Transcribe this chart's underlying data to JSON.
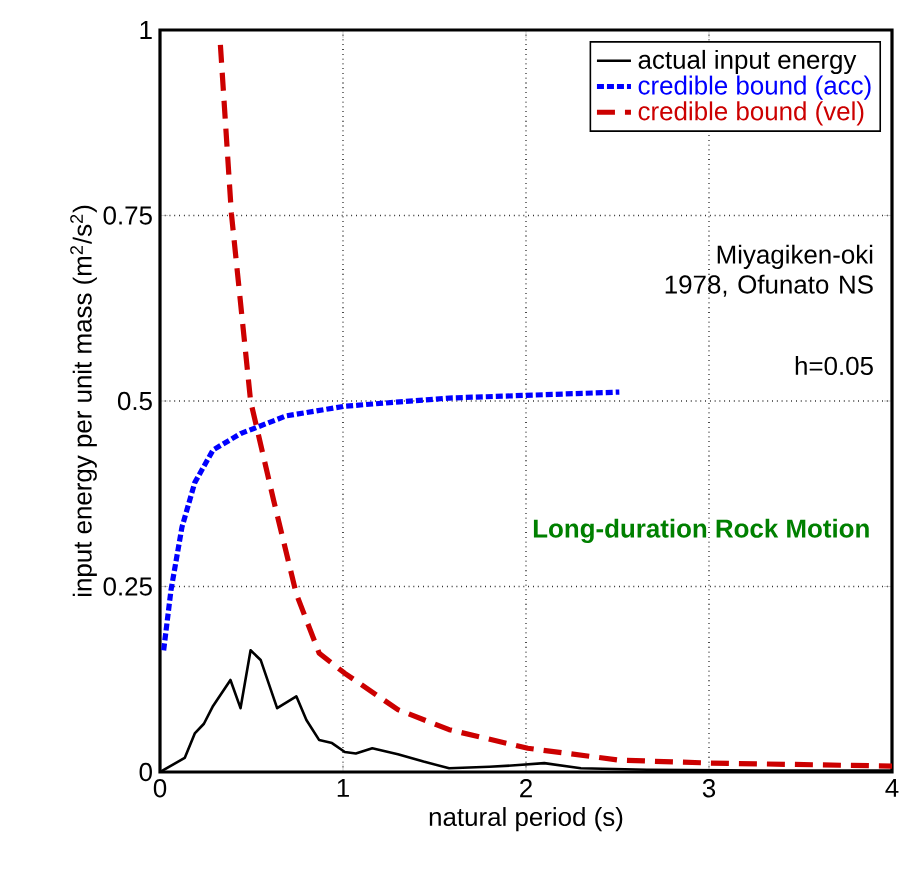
{
  "chart_data": {
    "type": "line",
    "xlabel": "natural period (s)",
    "ylabel": "input energy per unit mass (m$^{2}$/s$^{2}$)",
    "xlim": [
      0,
      4
    ],
    "ylim": [
      0,
      1
    ],
    "xticks": [
      0,
      1,
      2,
      3,
      4
    ],
    "yticks": [
      0,
      0.25,
      0.5,
      0.75,
      1
    ],
    "grid": true,
    "legend": "top right",
    "annotations": [
      "Miyagiken-oki 1978, Ofunato NS",
      "h=0.05",
      "Long-duration Rock Motion"
    ],
    "series": [
      {
        "name": "actual input energy",
        "color": "#000000",
        "line_style": "solid",
        "x": [
          0,
          0.135,
          0.19,
          0.24,
          0.29,
          0.385,
          0.44,
          0.495,
          0.55,
          0.64,
          0.745,
          0.8,
          0.87,
          0.94,
          1.01,
          1.07,
          1.16,
          1.3,
          1.44,
          1.58,
          1.8,
          1.94,
          2.1,
          2.3,
          2.66,
          3.37,
          4
        ],
        "values": [
          0,
          0.019,
          0.052,
          0.065,
          0.089,
          0.124,
          0.086,
          0.164,
          0.151,
          0.086,
          0.102,
          0.07,
          0.043,
          0.039,
          0.027,
          0.025,
          0.032,
          0.024,
          0.014,
          0.005,
          0.007,
          0.009,
          0.012,
          0.005,
          0.003,
          0.002,
          0.002
        ]
      },
      {
        "name": "credible bound (acc)",
        "color": "#0000ff",
        "line_style": "dotted",
        "x": [
          0.02,
          0.06,
          0.12,
          0.19,
          0.29,
          0.44,
          0.69,
          1.01,
          1.58,
          2.51
        ],
        "values": [
          0.164,
          0.245,
          0.33,
          0.39,
          0.434,
          0.456,
          0.48,
          0.493,
          0.504,
          0.512
        ]
      },
      {
        "name": "credible bound (vel)",
        "color": "#cc0000",
        "line_style": "dashed",
        "x": [
          0.33,
          0.39,
          0.495,
          0.62,
          0.745,
          0.87,
          1.01,
          1.3,
          1.58,
          2.01,
          2.51,
          3.01,
          4
        ],
        "values": [
          0.98,
          0.753,
          0.5,
          0.367,
          0.24,
          0.16,
          0.133,
          0.084,
          0.057,
          0.032,
          0.016,
          0.012,
          0.008
        ]
      }
    ]
  }
}
